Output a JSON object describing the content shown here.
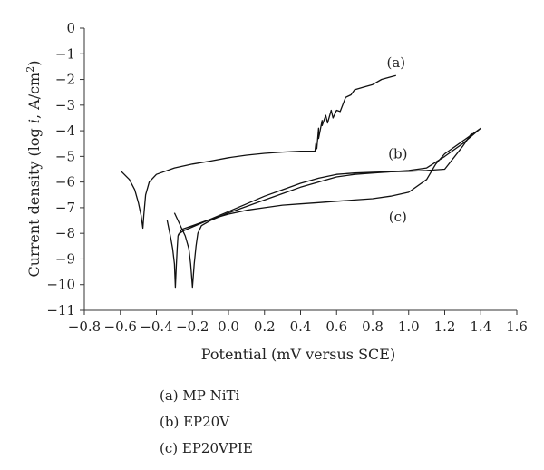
{
  "chart_data": {
    "type": "line",
    "title": "",
    "xlabel": "Potential (mV versus SCE)",
    "ylabel_parts": [
      "Current density (log ",
      "i",
      ", A/cm",
      "2",
      ")"
    ],
    "xlim": [
      -0.8,
      1.6
    ],
    "ylim": [
      -11,
      0
    ],
    "xticks": [
      "−0.8",
      "−0.6",
      "−0.4",
      "−0.2",
      "0.0",
      "0.2",
      "0.4",
      "0.6",
      "0.8",
      "1.0",
      "1.2",
      "1.4",
      "1.6"
    ],
    "yticks": [
      "0",
      "−1",
      "−2",
      "−3",
      "−4",
      "−5",
      "−6",
      "−7",
      "−8",
      "−9",
      "−10",
      "−11"
    ],
    "grid": false,
    "series": [
      {
        "name": "(a)",
        "x": [
          -0.6,
          -0.55,
          -0.52,
          -0.5,
          -0.485,
          -0.475,
          -0.47,
          -0.46,
          -0.44,
          -0.4,
          -0.3,
          -0.2,
          -0.1,
          0.0,
          0.1,
          0.2,
          0.3,
          0.4,
          0.48,
          0.485,
          0.49,
          0.5,
          0.5,
          0.52,
          0.52,
          0.54,
          0.55,
          0.57,
          0.58,
          0.6,
          0.62,
          0.65,
          0.68,
          0.7,
          0.75,
          0.8,
          0.85,
          0.9,
          0.93
        ],
        "y": [
          -5.55,
          -5.9,
          -6.3,
          -6.8,
          -7.3,
          -7.8,
          -7.3,
          -6.5,
          -6.0,
          -5.7,
          -5.45,
          -5.3,
          -5.18,
          -5.05,
          -4.95,
          -4.88,
          -4.83,
          -4.8,
          -4.8,
          -4.5,
          -4.7,
          -3.9,
          -4.3,
          -3.6,
          -3.8,
          -3.4,
          -3.7,
          -3.2,
          -3.5,
          -3.2,
          -3.25,
          -2.7,
          -2.6,
          -2.4,
          -2.3,
          -2.2,
          -2.0,
          -1.9,
          -1.85
        ]
      },
      {
        "name": "(b)",
        "x": [
          -0.34,
          -0.32,
          -0.31,
          -0.3,
          -0.295,
          -0.29,
          -0.285,
          -0.28,
          -0.26,
          -0.2,
          -0.1,
          0.0,
          0.1,
          0.2,
          0.3,
          0.4,
          0.5,
          0.6,
          0.7,
          0.8,
          0.9,
          1.0,
          1.1,
          1.15,
          1.2,
          1.3,
          1.4,
          1.4,
          1.3,
          1.2,
          1.1,
          1.0,
          0.9,
          0.8,
          0.7,
          0.6,
          0.5,
          0.4,
          0.3,
          0.2,
          0.1,
          0.0,
          -0.1,
          -0.2,
          -0.25,
          -0.28
        ],
        "y": [
          -7.5,
          -8.2,
          -8.6,
          -9.2,
          -10.1,
          -9.3,
          -8.6,
          -8.1,
          -7.85,
          -7.7,
          -7.45,
          -7.25,
          -7.1,
          -7.0,
          -6.9,
          -6.85,
          -6.8,
          -6.75,
          -6.7,
          -6.65,
          -6.55,
          -6.4,
          -5.9,
          -5.3,
          -4.9,
          -4.4,
          -3.9,
          -3.9,
          -4.5,
          -5.0,
          -5.45,
          -5.55,
          -5.6,
          -5.62,
          -5.65,
          -5.7,
          -5.85,
          -6.05,
          -6.3,
          -6.55,
          -6.85,
          -7.15,
          -7.45,
          -7.75,
          -7.9,
          -8.05
        ]
      },
      {
        "name": "(c)",
        "x": [
          -0.3,
          -0.28,
          -0.26,
          -0.24,
          -0.22,
          -0.21,
          -0.2,
          -0.19,
          -0.18,
          -0.17,
          -0.15,
          -0.1,
          0.0,
          0.1,
          0.2,
          0.3,
          0.4,
          0.5,
          0.6,
          0.7,
          0.8,
          0.9,
          1.0,
          1.1,
          1.2,
          1.3,
          1.35
        ],
        "y": [
          -7.2,
          -7.5,
          -7.8,
          -8.1,
          -8.6,
          -9.2,
          -10.1,
          -9.2,
          -8.5,
          -8.0,
          -7.7,
          -7.5,
          -7.2,
          -6.95,
          -6.7,
          -6.45,
          -6.2,
          -6.0,
          -5.8,
          -5.7,
          -5.65,
          -5.6,
          -5.58,
          -5.55,
          -5.5,
          -4.6,
          -4.1
        ]
      }
    ],
    "curve_labels": [
      {
        "text": "(a)",
        "x": 0.93,
        "y": -1.35
      },
      {
        "text": "(b)",
        "x": 0.94,
        "y": -4.9
      },
      {
        "text": "(c)",
        "x": 0.94,
        "y": -7.35
      }
    ]
  },
  "legend": {
    "a": "(a) MP NiTi",
    "b": "(b) EP20V",
    "c": "(c) EP20VPIE"
  }
}
